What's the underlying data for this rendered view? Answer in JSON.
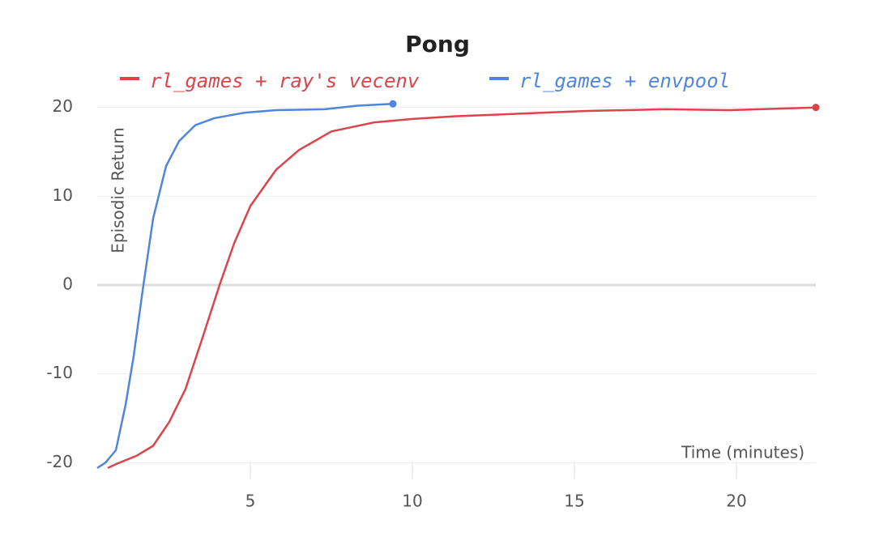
{
  "chart_data": {
    "type": "line",
    "title": "Pong",
    "x_label": "Time (minutes)",
    "y_label": "Episodic Return",
    "xlim": [
      0.275,
      22.45
    ],
    "xticks": [
      5,
      10,
      15,
      20
    ],
    "ylim": [
      -20.7,
      20.7
    ],
    "yticks": [
      -20,
      -10,
      0,
      10,
      20
    ],
    "grid": true,
    "legend": "top",
    "series": [
      {
        "name": "rl_games + ray's vecenv",
        "color": "#d9454a",
        "x": [
          0.6,
          0.9,
          1.5,
          2.0,
          2.5,
          3.0,
          3.5,
          4.05,
          4.5,
          5.0,
          5.8,
          6.5,
          7.5,
          8.8,
          10,
          11.3,
          13.3,
          15.3,
          17.8,
          19.8,
          22.45
        ],
        "values": [
          -20.6,
          -20.1,
          -19.2,
          -18.1,
          -15.4,
          -11.7,
          -6.2,
          0,
          4.7,
          8.9,
          13,
          15.2,
          17.3,
          18.3,
          18.7,
          19,
          19.3,
          19.6,
          19.8,
          19.7,
          20
        ]
      },
      {
        "name": "rl_games + envpool",
        "color": "#4f86db",
        "x": [
          0.275,
          0.53,
          0.85,
          1.15,
          1.4,
          1.7,
          2.0,
          2.4,
          2.8,
          3.3,
          3.9,
          4.8,
          5.8,
          7.3,
          8.3,
          9.4
        ],
        "values": [
          -20.6,
          -20,
          -18.6,
          -13.5,
          -8,
          0,
          7.5,
          13.4,
          16.2,
          18,
          18.8,
          19.4,
          19.7,
          19.8,
          20.2,
          20.4
        ]
      }
    ]
  }
}
